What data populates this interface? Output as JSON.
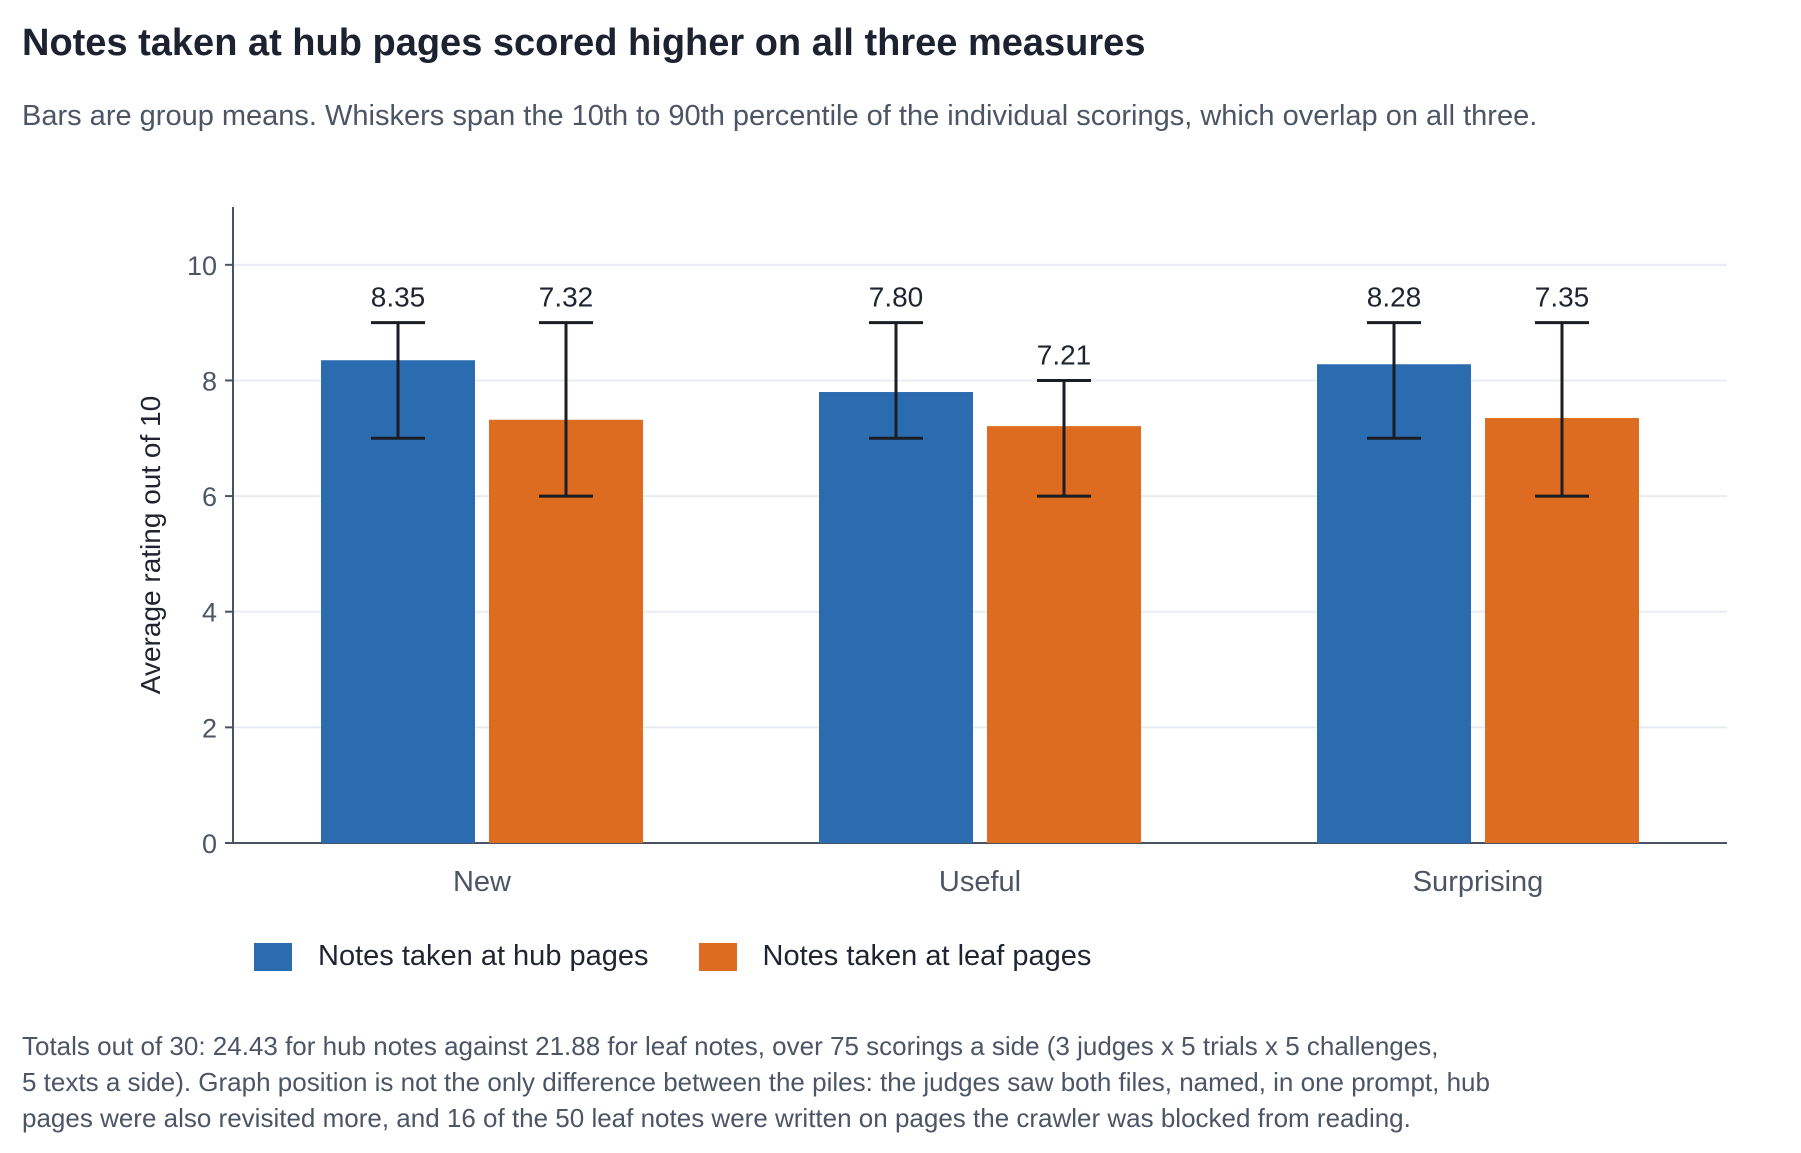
{
  "title": "Notes taken at hub pages scored higher on all three measures",
  "subtitle": "Bars are group means. Whiskers span the 10th to 90th percentile of the individual scorings, which overlap on all three.",
  "footnote_lines": [
    "Totals out of 30: 24.43 for hub notes against 21.88 for leaf notes, over 75 scorings a side (3 judges x 5 trials x 5 challenges,",
    "5 texts a side). Graph position is not the only difference between the piles: the judges saw both files, named, in one prompt, hub",
    "pages were also revisited more, and 16 of the 50 leaf notes were written on pages the crawler was blocked from reading."
  ],
  "chart_data": {
    "type": "bar",
    "categories": [
      "New",
      "Useful",
      "Surprising"
    ],
    "series": [
      {
        "name": "Notes taken at hub pages",
        "color": "#2b6cb0",
        "values": [
          8.35,
          7.8,
          8.28
        ],
        "labels": [
          "8.35",
          "7.80",
          "8.28"
        ],
        "whisker_low": [
          7,
          7,
          7
        ],
        "whisker_high": [
          9,
          9,
          9
        ]
      },
      {
        "name": "Notes taken at leaf pages",
        "color": "#dd6b20",
        "values": [
          7.32,
          7.21,
          7.35
        ],
        "labels": [
          "7.32",
          "7.21",
          "7.35"
        ],
        "whisker_low": [
          6,
          6,
          6
        ],
        "whisker_high": [
          9,
          8,
          9
        ]
      }
    ],
    "ylabel": "Average rating out of 10",
    "xlabel": "",
    "ylim": [
      0,
      11
    ],
    "yticks": [
      0,
      2,
      4,
      6,
      8,
      10
    ],
    "grid": true,
    "legend_position": "bottom-left"
  }
}
